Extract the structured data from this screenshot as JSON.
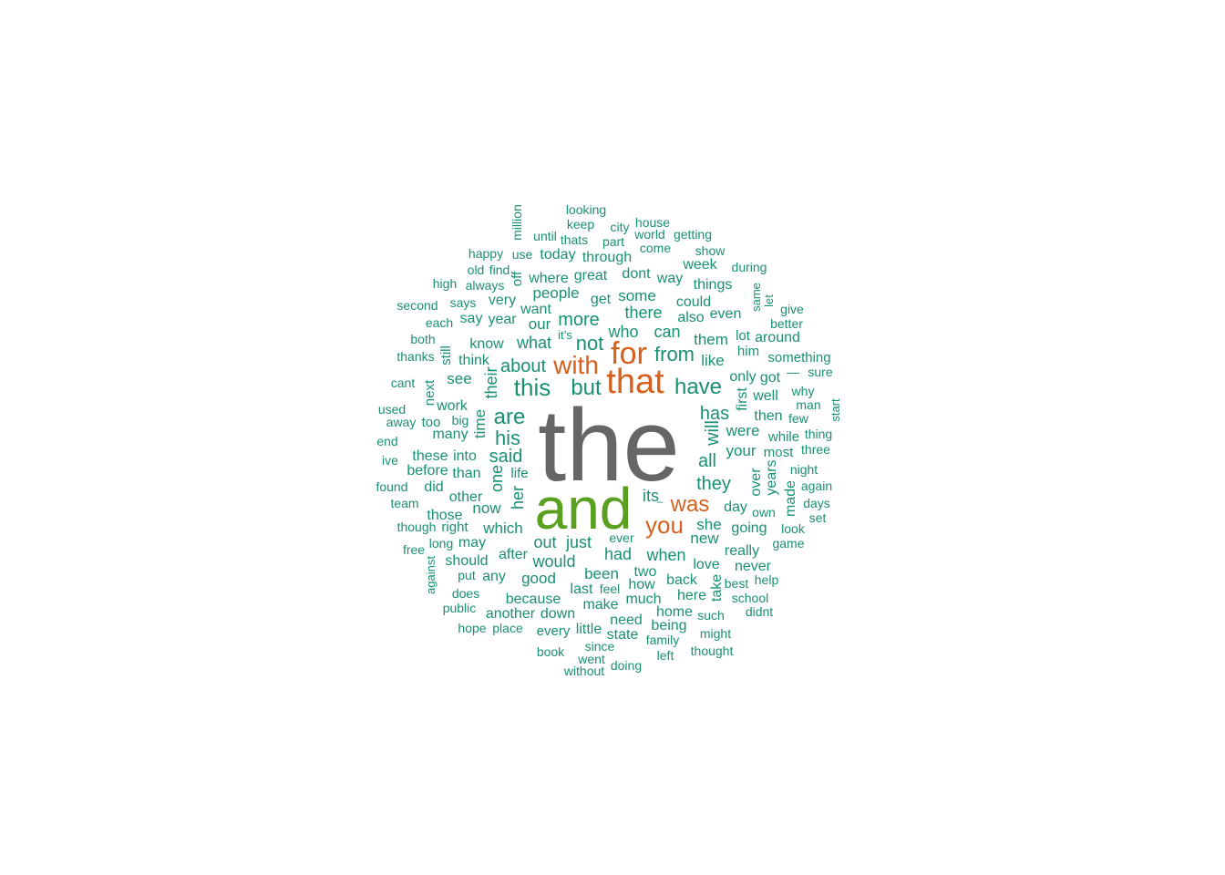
{
  "palette": {
    "largest": "#666666",
    "second": "#5aa020",
    "third": "#d6601c",
    "rest": "#1a9073"
  },
  "words": [
    {
      "text": "the",
      "tier": "largest"
    },
    {
      "text": "and",
      "tier": "second"
    },
    {
      "text": "that",
      "tier": "third"
    },
    {
      "text": "for",
      "tier": "third"
    },
    {
      "text": "with",
      "tier": "third"
    },
    {
      "text": "you",
      "tier": "third"
    },
    {
      "text": "was",
      "tier": "third"
    },
    {
      "text": "this",
      "tier": "rest"
    },
    {
      "text": "have",
      "tier": "rest"
    },
    {
      "text": "but",
      "tier": "rest"
    },
    {
      "text": "are",
      "tier": "rest"
    },
    {
      "text": "from",
      "tier": "rest"
    },
    {
      "text": "not",
      "tier": "rest"
    },
    {
      "text": "about",
      "tier": "rest"
    },
    {
      "text": "his",
      "tier": "rest"
    },
    {
      "text": "said",
      "tier": "rest"
    },
    {
      "text": "they",
      "tier": "rest"
    },
    {
      "text": "more",
      "tier": "rest"
    },
    {
      "text": "has",
      "tier": "rest"
    },
    {
      "text": "all",
      "tier": "rest"
    },
    {
      "text": "will",
      "tier": "rest"
    },
    {
      "text": "what",
      "tier": "rest"
    },
    {
      "text": "who",
      "tier": "rest"
    },
    {
      "text": "there",
      "tier": "rest"
    },
    {
      "text": "can",
      "tier": "rest"
    },
    {
      "text": "their",
      "tier": "rest"
    },
    {
      "text": "out",
      "tier": "rest"
    },
    {
      "text": "just",
      "tier": "rest"
    },
    {
      "text": "its",
      "tier": "rest"
    },
    {
      "text": "one",
      "tier": "rest"
    },
    {
      "text": "her",
      "tier": "rest"
    },
    {
      "text": "were",
      "tier": "rest"
    },
    {
      "text": "your",
      "tier": "rest"
    },
    {
      "text": "would",
      "tier": "rest"
    },
    {
      "text": "had",
      "tier": "rest"
    },
    {
      "text": "when",
      "tier": "rest"
    },
    {
      "text": "she",
      "tier": "rest"
    },
    {
      "text": "new",
      "tier": "rest"
    },
    {
      "text": "like",
      "tier": "rest"
    },
    {
      "text": "them",
      "tier": "rest"
    },
    {
      "text": "some",
      "tier": "rest"
    },
    {
      "text": "people",
      "tier": "rest"
    },
    {
      "text": "our",
      "tier": "rest"
    },
    {
      "text": "time",
      "tier": "rest"
    },
    {
      "text": "see",
      "tier": "rest"
    },
    {
      "text": "been",
      "tier": "rest"
    },
    {
      "text": "also",
      "tier": "rest"
    },
    {
      "text": "even",
      "tier": "rest"
    },
    {
      "text": "could",
      "tier": "rest"
    },
    {
      "text": "going",
      "tier": "rest"
    },
    {
      "text": "day",
      "tier": "rest"
    },
    {
      "text": "really",
      "tier": "rest"
    },
    {
      "text": "love",
      "tier": "rest"
    },
    {
      "text": "good",
      "tier": "rest"
    },
    {
      "text": "any",
      "tier": "rest"
    },
    {
      "text": "after",
      "tier": "rest"
    },
    {
      "text": "which",
      "tier": "rest"
    },
    {
      "text": "now",
      "tier": "rest"
    },
    {
      "text": "other",
      "tier": "rest"
    },
    {
      "text": "than",
      "tier": "rest"
    },
    {
      "text": "into",
      "tier": "rest"
    },
    {
      "text": "those",
      "tier": "rest"
    },
    {
      "text": "these",
      "tier": "rest"
    },
    {
      "text": "before",
      "tier": "rest"
    },
    {
      "text": "did",
      "tier": "rest"
    },
    {
      "text": "many",
      "tier": "rest"
    },
    {
      "text": "work",
      "tier": "rest"
    },
    {
      "text": "know",
      "tier": "rest"
    },
    {
      "text": "think",
      "tier": "rest"
    },
    {
      "text": "say",
      "tier": "rest"
    },
    {
      "text": "year",
      "tier": "rest"
    },
    {
      "text": "want",
      "tier": "rest"
    },
    {
      "text": "very",
      "tier": "rest"
    },
    {
      "text": "where",
      "tier": "rest"
    },
    {
      "text": "great",
      "tier": "rest"
    },
    {
      "text": "get",
      "tier": "rest"
    },
    {
      "text": "dont",
      "tier": "rest"
    },
    {
      "text": "way",
      "tier": "rest"
    },
    {
      "text": "week",
      "tier": "rest"
    },
    {
      "text": "things",
      "tier": "rest"
    },
    {
      "text": "today",
      "tier": "rest"
    },
    {
      "text": "through",
      "tier": "rest"
    },
    {
      "text": "only",
      "tier": "rest"
    },
    {
      "text": "got",
      "tier": "rest"
    },
    {
      "text": "first",
      "tier": "rest"
    },
    {
      "text": "well",
      "tier": "rest"
    },
    {
      "text": "then",
      "tier": "rest"
    },
    {
      "text": "most",
      "tier": "rest"
    },
    {
      "text": "while",
      "tier": "rest"
    },
    {
      "text": "over",
      "tier": "rest"
    },
    {
      "text": "years",
      "tier": "rest"
    },
    {
      "text": "made",
      "tier": "rest"
    },
    {
      "text": "around",
      "tier": "rest"
    },
    {
      "text": "something",
      "tier": "rest"
    },
    {
      "text": "him",
      "tier": "rest"
    },
    {
      "text": "lot",
      "tier": "rest"
    },
    {
      "text": "should",
      "tier": "rest"
    },
    {
      "text": "may",
      "tier": "rest"
    },
    {
      "text": "because",
      "tier": "rest"
    },
    {
      "text": "another",
      "tier": "rest"
    },
    {
      "text": "down",
      "tier": "rest"
    },
    {
      "text": "make",
      "tier": "rest"
    },
    {
      "text": "much",
      "tier": "rest"
    },
    {
      "text": "how",
      "tier": "rest"
    },
    {
      "text": "two",
      "tier": "rest"
    },
    {
      "text": "last",
      "tier": "rest"
    },
    {
      "text": "back",
      "tier": "rest"
    },
    {
      "text": "here",
      "tier": "rest"
    },
    {
      "text": "take",
      "tier": "rest"
    },
    {
      "text": "never",
      "tier": "rest"
    },
    {
      "text": "home",
      "tier": "rest"
    },
    {
      "text": "need",
      "tier": "rest"
    },
    {
      "text": "being",
      "tier": "rest"
    },
    {
      "text": "state",
      "tier": "rest"
    },
    {
      "text": "little",
      "tier": "rest"
    },
    {
      "text": "every",
      "tier": "rest"
    },
    {
      "text": "life",
      "tier": "rest"
    },
    {
      "text": "right",
      "tier": "rest"
    },
    {
      "text": "off",
      "tier": "rest"
    },
    {
      "text": "still",
      "tier": "rest"
    },
    {
      "text": "next",
      "tier": "rest"
    },
    {
      "text": "too",
      "tier": "rest"
    },
    {
      "text": "big",
      "tier": "rest"
    },
    {
      "text": "always",
      "tier": "rest"
    },
    {
      "text": "says",
      "tier": "rest"
    },
    {
      "text": "find",
      "tier": "rest"
    },
    {
      "text": "old",
      "tier": "rest"
    },
    {
      "text": "use",
      "tier": "rest"
    },
    {
      "text": "happy",
      "tier": "rest"
    },
    {
      "text": "until",
      "tier": "rest"
    },
    {
      "text": "thats",
      "tier": "rest"
    },
    {
      "text": "keep",
      "tier": "rest"
    },
    {
      "text": "looking",
      "tier": "rest"
    },
    {
      "text": "million",
      "tier": "rest"
    },
    {
      "text": "part",
      "tier": "rest"
    },
    {
      "text": "city",
      "tier": "rest"
    },
    {
      "text": "house",
      "tier": "rest"
    },
    {
      "text": "world",
      "tier": "rest"
    },
    {
      "text": "getting",
      "tier": "rest"
    },
    {
      "text": "come",
      "tier": "rest"
    },
    {
      "text": "show",
      "tier": "rest"
    },
    {
      "text": "during",
      "tier": "rest"
    },
    {
      "text": "same",
      "tier": "rest"
    },
    {
      "text": "let",
      "tier": "rest"
    },
    {
      "text": "give",
      "tier": "rest"
    },
    {
      "text": "better",
      "tier": "rest"
    },
    {
      "text": "—",
      "tier": "rest"
    },
    {
      "text": "sure",
      "tier": "rest"
    },
    {
      "text": "why",
      "tier": "rest"
    },
    {
      "text": "man",
      "tier": "rest"
    },
    {
      "text": "few",
      "tier": "rest"
    },
    {
      "text": "start",
      "tier": "rest"
    },
    {
      "text": "thing",
      "tier": "rest"
    },
    {
      "text": "three",
      "tier": "rest"
    },
    {
      "text": "night",
      "tier": "rest"
    },
    {
      "text": "again",
      "tier": "rest"
    },
    {
      "text": "days",
      "tier": "rest"
    },
    {
      "text": "set",
      "tier": "rest"
    },
    {
      "text": "own",
      "tier": "rest"
    },
    {
      "text": "look",
      "tier": "rest"
    },
    {
      "text": "game",
      "tier": "rest"
    },
    {
      "text": "best",
      "tier": "rest"
    },
    {
      "text": "help",
      "tier": "rest"
    },
    {
      "text": "school",
      "tier": "rest"
    },
    {
      "text": "didnt",
      "tier": "rest"
    },
    {
      "text": "such",
      "tier": "rest"
    },
    {
      "text": "might",
      "tier": "rest"
    },
    {
      "text": "thought",
      "tier": "rest"
    },
    {
      "text": "family",
      "tier": "rest"
    },
    {
      "text": "left",
      "tier": "rest"
    },
    {
      "text": "doing",
      "tier": "rest"
    },
    {
      "text": "since",
      "tier": "rest"
    },
    {
      "text": "went",
      "tier": "rest"
    },
    {
      "text": "without",
      "tier": "rest"
    },
    {
      "text": "book",
      "tier": "rest"
    },
    {
      "text": "feel",
      "tier": "rest"
    },
    {
      "text": "ever",
      "tier": "rest"
    },
    {
      "text": "hope",
      "tier": "rest"
    },
    {
      "text": "place",
      "tier": "rest"
    },
    {
      "text": "public",
      "tier": "rest"
    },
    {
      "text": "does",
      "tier": "rest"
    },
    {
      "text": "put",
      "tier": "rest"
    },
    {
      "text": "against",
      "tier": "rest"
    },
    {
      "text": "free",
      "tier": "rest"
    },
    {
      "text": "long",
      "tier": "rest"
    },
    {
      "text": "though",
      "tier": "rest"
    },
    {
      "text": "team",
      "tier": "rest"
    },
    {
      "text": "found",
      "tier": "rest"
    },
    {
      "text": "ive",
      "tier": "rest"
    },
    {
      "text": "end",
      "tier": "rest"
    },
    {
      "text": "away",
      "tier": "rest"
    },
    {
      "text": "used",
      "tier": "rest"
    },
    {
      "text": "cant",
      "tier": "rest"
    },
    {
      "text": "thanks",
      "tier": "rest"
    },
    {
      "text": "both",
      "tier": "rest"
    },
    {
      "text": "each",
      "tier": "rest"
    },
    {
      "text": "second",
      "tier": "rest"
    },
    {
      "text": "high",
      "tier": "rest"
    },
    {
      "text": "it’s",
      "tier": "rest"
    },
    {
      "text": "–",
      "tier": "rest"
    }
  ]
}
